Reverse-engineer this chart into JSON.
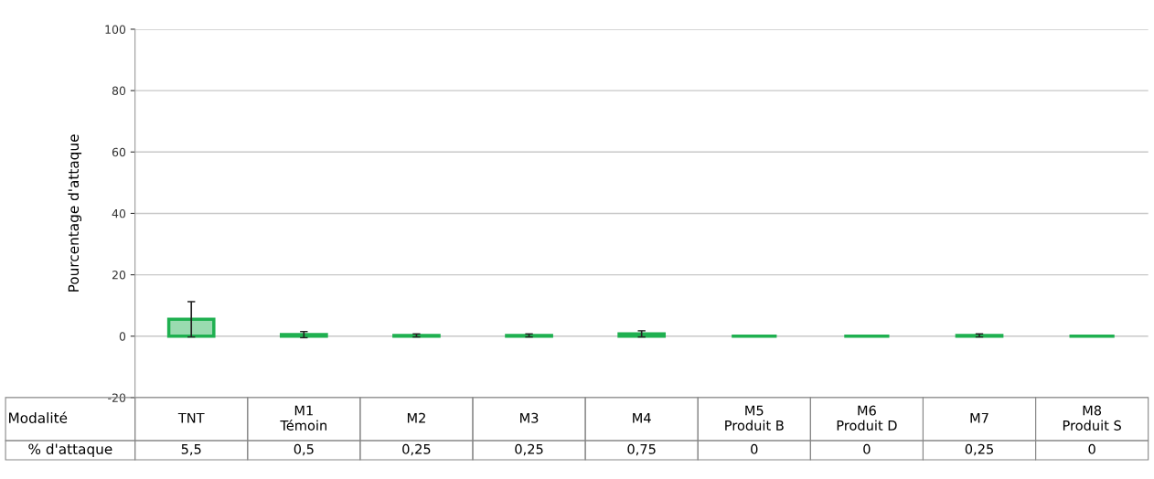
{
  "chart_data": {
    "type": "bar",
    "xlabel": "Modalité",
    "ylabel": "Pourcentage d'attaque",
    "categories": [
      "TNT",
      "M1\nTémoin",
      "M2",
      "M3",
      "M4",
      "M5\nProduit B",
      "M6\nProduit D",
      "M7",
      "M8\nProduit S"
    ],
    "series": [
      {
        "name": "% d'attaque",
        "color": "#1fb050",
        "values": [
          5.5,
          0.5,
          0.25,
          0.25,
          0.75,
          0,
          0,
          0.25,
          0
        ],
        "errors": [
          5.75,
          1,
          0.5,
          0.5,
          1,
          null,
          null,
          0.5,
          null
        ],
        "value_labels": [
          "5,5",
          "0,5",
          "0,25",
          "0,25",
          "0,75",
          "0",
          "0",
          "0,25",
          "0"
        ]
      }
    ],
    "ylim": [
      -20,
      100
    ],
    "yticks": [
      -20,
      0,
      20,
      40,
      60,
      80,
      100
    ],
    "grid": "y",
    "data_labels": true
  }
}
